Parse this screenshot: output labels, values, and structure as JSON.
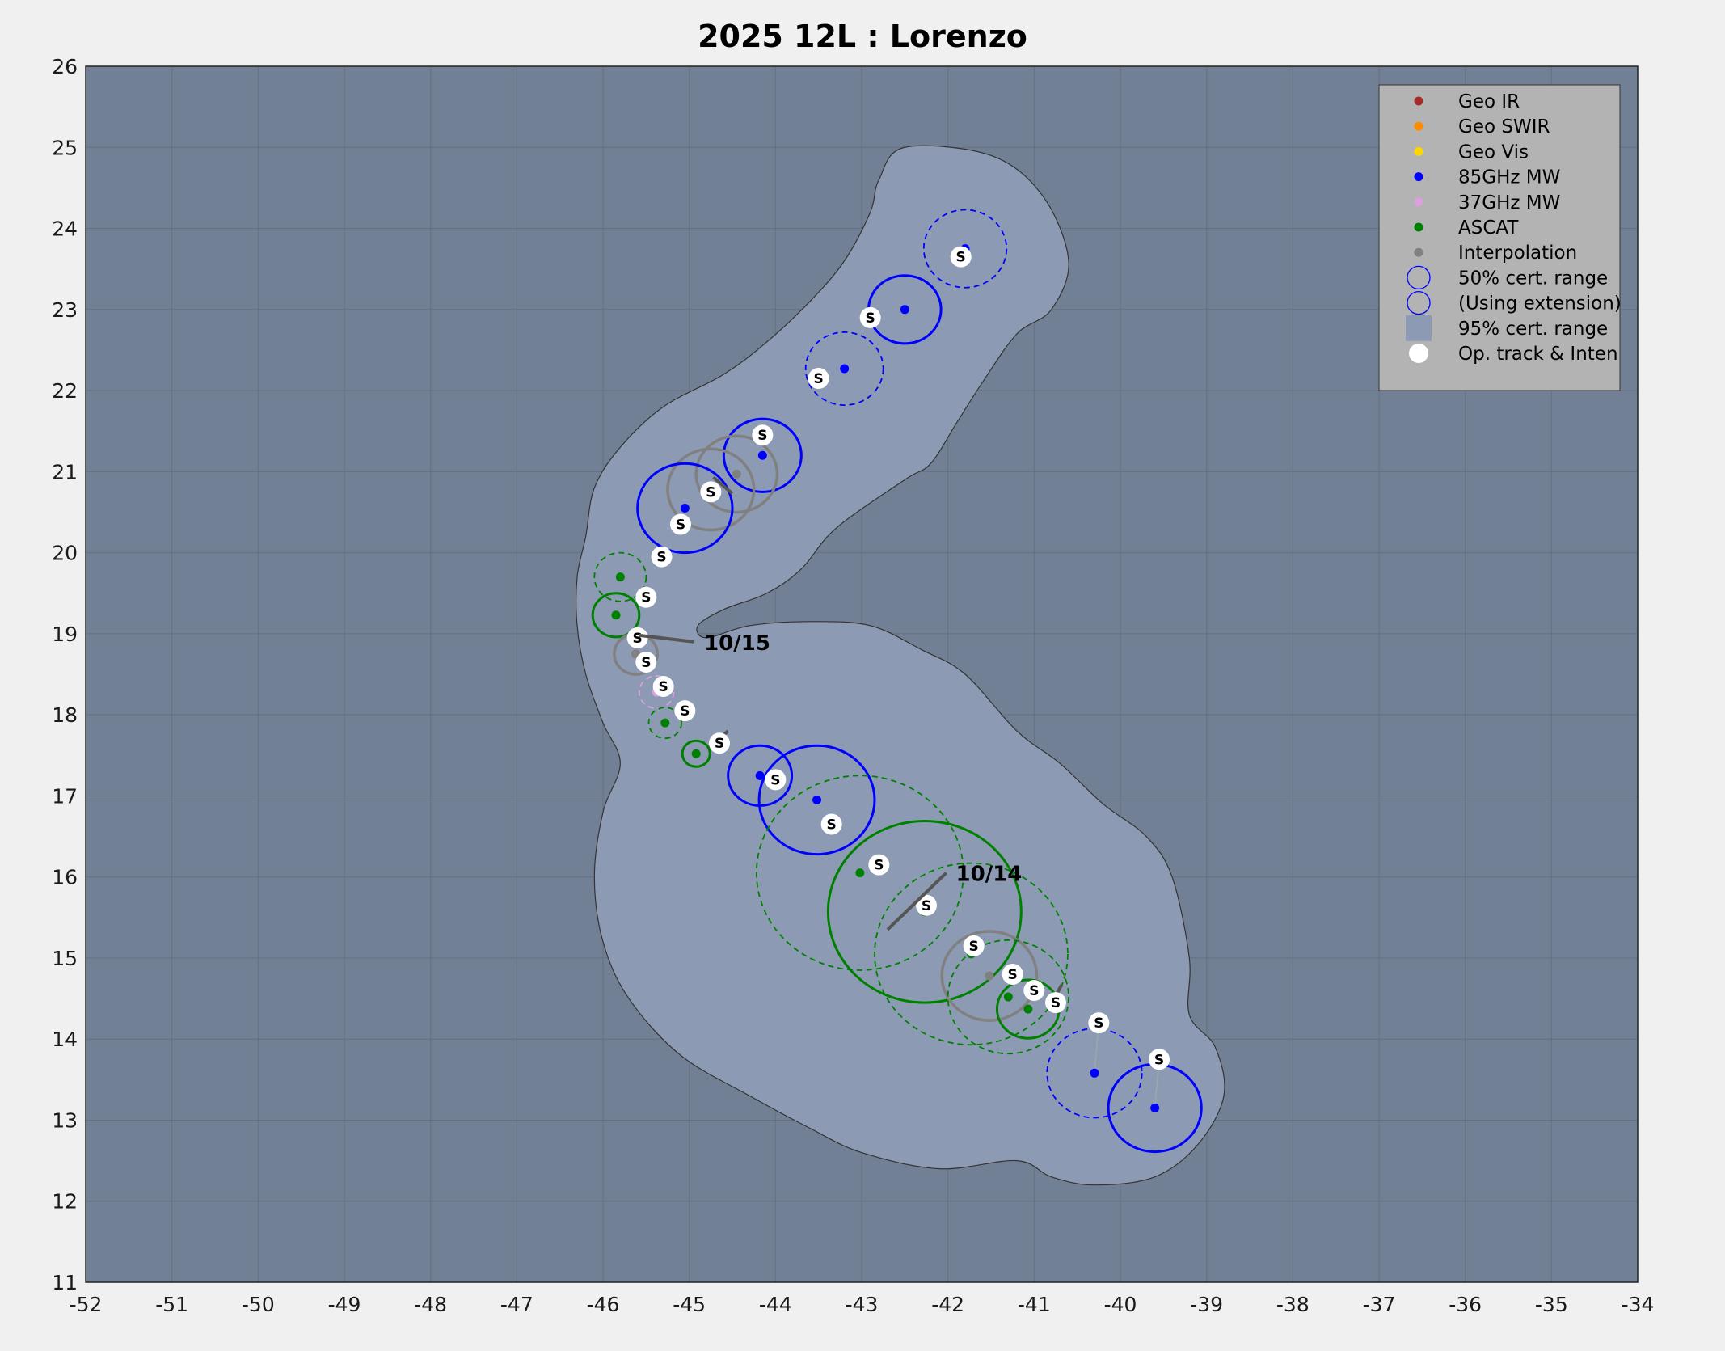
{
  "chart_data": {
    "type": "scatter",
    "title": "2025  12L :  Lorenzo",
    "xlim": [
      -52,
      -34
    ],
    "ylim": [
      11,
      26
    ],
    "xticks": [
      "-52",
      "-51",
      "-50",
      "-49",
      "-48",
      "-47",
      "-46",
      "-45",
      "-44",
      "-43",
      "-42",
      "-41",
      "-40",
      "-39",
      "-38",
      "-37",
      "-36",
      "-35",
      "-34"
    ],
    "yticks": [
      "11",
      "12",
      "13",
      "14",
      "15",
      "16",
      "17",
      "18",
      "19",
      "20",
      "21",
      "22",
      "23",
      "24",
      "25",
      "26"
    ],
    "grid": true,
    "legend_position": "top-right",
    "legend": [
      {
        "label": "Geo IR",
        "color": "#a52a2a",
        "marker": "dot"
      },
      {
        "label": "Geo SWIR",
        "color": "#ff8c00",
        "marker": "dot"
      },
      {
        "label": "Geo Vis",
        "color": "#ffd700",
        "marker": "dot"
      },
      {
        "label": "85GHz MW",
        "color": "#0000ff",
        "marker": "dot"
      },
      {
        "label": "37GHz MW",
        "color": "#dda0dd",
        "marker": "dot"
      },
      {
        "label": "ASCAT",
        "color": "#008000",
        "marker": "dot"
      },
      {
        "label": "Interpolation",
        "color": "#808080",
        "marker": "dot"
      },
      {
        "label": "50% cert. range",
        "color": "#0000ff",
        "marker": "circle-solid"
      },
      {
        "label": "(Using extension)",
        "color": "#0000ff",
        "marker": "circle-dashed"
      },
      {
        "label": "95% cert. range",
        "color": "#8c9bb3",
        "marker": "square"
      },
      {
        "label": "Op. track & Inten",
        "color": "#ffffff",
        "marker": "bigdot"
      }
    ],
    "colors": {
      "plot_bg": "#728095",
      "region95": "#8c9bb3",
      "grid": "#65717f",
      "mw85": "#0000ff",
      "mw37": "#dda0dd",
      "ascat": "#008000",
      "interp": "#808080"
    },
    "region_95": [
      [
        -42.5,
        25
      ],
      [
        -41.5,
        24.9
      ],
      [
        -40.9,
        24.4
      ],
      [
        -40.6,
        23.6
      ],
      [
        -40.8,
        23
      ],
      [
        -41.2,
        22.7
      ],
      [
        -41.6,
        22.1
      ],
      [
        -41.9,
        21.6
      ],
      [
        -42.2,
        21.1
      ],
      [
        -42.5,
        20.9
      ],
      [
        -43.3,
        20.3
      ],
      [
        -43.7,
        19.8
      ],
      [
        -44.1,
        19.5
      ],
      [
        -44.6,
        19.3
      ],
      [
        -44.9,
        19.1
      ],
      [
        -44.8,
        18.95
      ],
      [
        -44.3,
        19.1
      ],
      [
        -43.6,
        19.15
      ],
      [
        -42.9,
        19.1
      ],
      [
        -42.3,
        18.8
      ],
      [
        -41.8,
        18.5
      ],
      [
        -41.2,
        17.8
      ],
      [
        -40.7,
        17.4
      ],
      [
        -40.2,
        16.9
      ],
      [
        -39.7,
        16.5
      ],
      [
        -39.4,
        16
      ],
      [
        -39.2,
        15
      ],
      [
        -39.2,
        14.3
      ],
      [
        -38.9,
        13.9
      ],
      [
        -38.8,
        13.3
      ],
      [
        -39.1,
        12.7
      ],
      [
        -39.6,
        12.3
      ],
      [
        -40.3,
        12.2
      ],
      [
        -40.8,
        12.3
      ],
      [
        -41.2,
        12.5
      ],
      [
        -42.1,
        12.4
      ],
      [
        -43,
        12.6
      ],
      [
        -43.6,
        12.9
      ],
      [
        -44.3,
        13.3
      ],
      [
        -45.1,
        13.8
      ],
      [
        -45.7,
        14.5
      ],
      [
        -46,
        15.2
      ],
      [
        -46.1,
        16
      ],
      [
        -46,
        16.8
      ],
      [
        -45.8,
        17.4
      ],
      [
        -46,
        17.9
      ],
      [
        -46.2,
        18.5
      ],
      [
        -46.3,
        19.1
      ],
      [
        -46.3,
        19.7
      ],
      [
        -46.2,
        20.2
      ],
      [
        -46.1,
        20.8
      ],
      [
        -45.8,
        21.3
      ],
      [
        -45.3,
        21.8
      ],
      [
        -44.6,
        22.2
      ],
      [
        -44.1,
        22.6
      ],
      [
        -43.6,
        23.1
      ],
      [
        -43.2,
        23.6
      ],
      [
        -42.9,
        24.2
      ],
      [
        -42.8,
        24.6
      ]
    ],
    "op_track": [
      {
        "x": -41.85,
        "y": 23.65,
        "label": "S"
      },
      {
        "x": -42.9,
        "y": 22.9,
        "label": "S"
      },
      {
        "x": -43.5,
        "y": 22.15,
        "label": "S"
      },
      {
        "x": -44.15,
        "y": 21.45,
        "label": "S"
      },
      {
        "x": -44.75,
        "y": 20.75,
        "label": "S"
      },
      {
        "x": -45.1,
        "y": 20.35,
        "label": "S"
      },
      {
        "x": -45.32,
        "y": 19.95,
        "label": "S"
      },
      {
        "x": -45.5,
        "y": 19.45,
        "label": "S"
      },
      {
        "x": -45.6,
        "y": 18.95,
        "label": "S"
      },
      {
        "x": -45.5,
        "y": 18.65,
        "label": "S"
      },
      {
        "x": -45.3,
        "y": 18.35,
        "label": "S"
      },
      {
        "x": -45.05,
        "y": 18.05,
        "label": "S"
      },
      {
        "x": -44.65,
        "y": 17.65,
        "label": "S"
      },
      {
        "x": -44.0,
        "y": 17.2,
        "label": "S"
      },
      {
        "x": -43.35,
        "y": 16.65,
        "label": "S"
      },
      {
        "x": -42.8,
        "y": 16.15,
        "label": "S"
      },
      {
        "x": -42.25,
        "y": 15.65,
        "label": "S"
      },
      {
        "x": -41.7,
        "y": 15.15,
        "label": "S"
      },
      {
        "x": -41.25,
        "y": 14.8,
        "label": "S"
      },
      {
        "x": -41.0,
        "y": 14.6,
        "label": "S"
      },
      {
        "x": -40.75,
        "y": 14.45,
        "label": "S"
      },
      {
        "x": -40.25,
        "y": 14.2,
        "label": "S"
      },
      {
        "x": -39.55,
        "y": 13.75,
        "label": "S"
      }
    ],
    "fixes": [
      {
        "type": "mw85",
        "x": -41.8,
        "y": 23.75,
        "r": 0.48,
        "style": "dashed"
      },
      {
        "type": "mw85",
        "x": -42.5,
        "y": 23.0,
        "r": 0.42,
        "style": "solid"
      },
      {
        "type": "mw85",
        "x": -43.2,
        "y": 22.27,
        "r": 0.45,
        "style": "dashed"
      },
      {
        "type": "mw85",
        "x": -44.15,
        "y": 21.2,
        "r": 0.45,
        "style": "solid"
      },
      {
        "type": "interp",
        "x": -44.45,
        "y": 20.97,
        "r": 0.47,
        "style": "solid"
      },
      {
        "type": "interp",
        "x": -44.75,
        "y": 20.78,
        "r": 0.5,
        "style": "solid"
      },
      {
        "type": "mw85",
        "x": -45.05,
        "y": 20.55,
        "r": 0.55,
        "style": "solid"
      },
      {
        "type": "ascat",
        "x": -45.8,
        "y": 19.7,
        "r": 0.3,
        "style": "dashed"
      },
      {
        "type": "ascat",
        "x": -45.85,
        "y": 19.23,
        "r": 0.27,
        "style": "solid"
      },
      {
        "type": "interp",
        "x": -45.62,
        "y": 18.75,
        "r": 0.25,
        "style": "solid"
      },
      {
        "type": "mw37",
        "x": -45.38,
        "y": 18.28,
        "r": 0.2,
        "style": "dashed"
      },
      {
        "type": "ascat",
        "x": -45.28,
        "y": 17.9,
        "r": 0.19,
        "style": "dashed"
      },
      {
        "type": "ascat",
        "x": -44.92,
        "y": 17.52,
        "r": 0.16,
        "style": "solid"
      },
      {
        "type": "mw85",
        "x": -44.18,
        "y": 17.25,
        "r": 0.37,
        "style": "solid"
      },
      {
        "type": "mw85",
        "x": -43.52,
        "y": 16.95,
        "r": 0.67,
        "style": "solid"
      },
      {
        "type": "ascat",
        "x": -43.02,
        "y": 16.05,
        "r": 1.2,
        "style": "dashed"
      },
      {
        "type": "ascat",
        "x": -42.27,
        "y": 15.57,
        "r": 1.12,
        "style": "solid"
      },
      {
        "type": "ascat",
        "x": -41.73,
        "y": 15.05,
        "r": 1.12,
        "style": "dashed"
      },
      {
        "type": "interp",
        "x": -41.52,
        "y": 14.78,
        "r": 0.55,
        "style": "solid"
      },
      {
        "type": "ascat",
        "x": -41.3,
        "y": 14.52,
        "r": 0.7,
        "style": "dashed"
      },
      {
        "type": "ascat",
        "x": -41.07,
        "y": 14.37,
        "r": 0.36,
        "style": "solid"
      },
      {
        "type": "mw85",
        "x": -40.3,
        "y": 13.58,
        "r": 0.55,
        "style": "dashed"
      },
      {
        "type": "mw85",
        "x": -39.6,
        "y": 13.15,
        "r": 0.54,
        "style": "solid"
      }
    ],
    "date_marks": [
      {
        "label": "10/15",
        "x": -45.58,
        "y": 18.98,
        "x2": -44.94,
        "y2": 18.9
      },
      {
        "label": "10/14",
        "x": -42.7,
        "y": 15.35,
        "x2": -42.02,
        "y2": 16.05
      }
    ],
    "extra_segments": [
      [
        -44.72,
        20.93,
        -44.5,
        20.73
      ],
      [
        -44.77,
        17.6,
        -44.55,
        17.8
      ],
      [
        -40.82,
        14.4,
        -40.68,
        14.67
      ]
    ]
  }
}
